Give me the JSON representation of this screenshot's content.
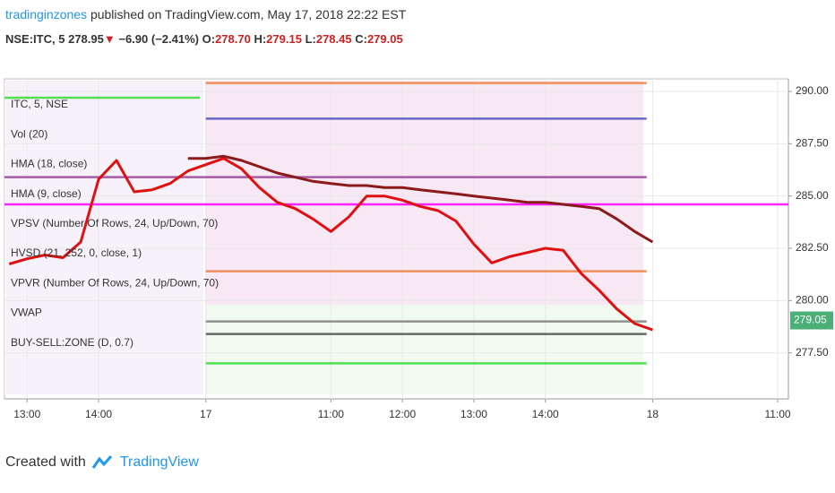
{
  "header": {
    "author": "tradinginzones",
    "published": "published on TradingView.com, May 17, 2018 22:22 EST",
    "symbol": "NSE:ITC, 5",
    "last": "278.95",
    "arrow": "▼",
    "change": "−6.90 (−2.41%)",
    "open_label": "O:",
    "open": "278.70",
    "high_label": "H:",
    "high": "279.15",
    "low_label": "L:",
    "low": "278.45",
    "close_label": "C:",
    "close": "279.05"
  },
  "chart_data": {
    "type": "line",
    "indicators": [
      "ITC, 5, NSE",
      "Vol (20)",
      "HMA (18, close)",
      "HMA (9, close)",
      "VPSV (Number Of Rows, 24, Up/Down, 70)",
      "HVSD (21, 252, 0, close, 1)",
      "VPVR (Number Of Rows, 24, Up/Down, 70)",
      "VWAP",
      "BUY-SELL:ZONE (D, 0.7)"
    ],
    "x": [
      -3,
      0,
      3,
      6,
      9,
      12,
      15,
      18,
      21,
      24,
      27,
      30,
      33,
      36,
      39,
      42,
      45,
      48,
      51,
      54,
      57,
      60,
      63,
      66,
      69,
      72,
      75,
      78,
      81,
      84,
      87,
      90,
      93,
      96,
      99,
      102,
      105
    ],
    "series": [
      {
        "color": "#e01010",
        "values": [
          281.75,
          282.0,
          282.18,
          282.05,
          282.8,
          285.8,
          286.7,
          285.2,
          285.3,
          285.6,
          286.2,
          286.5,
          286.8,
          286.3,
          285.4,
          284.7,
          284.4,
          283.9,
          283.3,
          284.0,
          285.0,
          285.0,
          284.8,
          284.5,
          284.3,
          283.8,
          282.7,
          281.8,
          282.1,
          282.3,
          282.5,
          282.4,
          281.3,
          280.5,
          279.6,
          278.9,
          278.6
        ]
      },
      {
        "color": "#8b1a1a",
        "values": [
          null,
          null,
          null,
          null,
          null,
          null,
          null,
          null,
          null,
          null,
          286.8,
          286.8,
          286.9,
          286.7,
          286.4,
          286.1,
          285.9,
          285.7,
          285.6,
          285.5,
          285.5,
          285.4,
          285.4,
          285.3,
          285.2,
          285.1,
          285.0,
          284.9,
          284.8,
          284.7,
          284.7,
          284.6,
          284.5,
          284.4,
          283.9,
          283.3,
          282.8
        ]
      }
    ],
    "levels": [
      {
        "value": 289.7,
        "color": "#33dd33",
        "from": -3.8,
        "to": 29
      },
      {
        "value": 290.4,
        "color": "#f08040",
        "from": 30,
        "to": 104
      },
      {
        "value": 288.7,
        "color": "#5050c0",
        "from": 30,
        "to": 104
      },
      {
        "value": 285.9,
        "color": "#9b3f9b",
        "from": -3.8,
        "to": 104
      },
      {
        "value": 284.6,
        "color": "#ff00ff",
        "from": -3.8,
        "to": 127.8
      },
      {
        "value": 281.4,
        "color": "#f08040",
        "from": 30,
        "to": 104
      },
      {
        "value": 279.0,
        "color": "#808080",
        "from": 30,
        "to": 104
      },
      {
        "value": 278.4,
        "color": "#505050",
        "from": 30,
        "to": 104
      },
      {
        "value": 277.0,
        "color": "#33dd33",
        "from": 30,
        "to": 104
      }
    ],
    "last_price": 279.05,
    "last_color": "#4caf78",
    "xlim": [
      -3.8,
      127.8
    ],
    "xticks": [
      {
        "value": 0,
        "label": "13:00"
      },
      {
        "value": 12,
        "label": "14:00"
      },
      {
        "value": 30,
        "label": "17"
      },
      {
        "value": 51,
        "label": "11:00"
      },
      {
        "value": 63,
        "label": "12:00"
      },
      {
        "value": 75,
        "label": "13:00"
      },
      {
        "value": 87,
        "label": "14:00"
      },
      {
        "value": 105,
        "label": "18"
      },
      {
        "value": 126,
        "label": "11:00"
      }
    ],
    "ylim": [
      275.3,
      290.6
    ],
    "yticks": [
      {
        "value": 277.5,
        "label": "277.50"
      },
      {
        "value": 280,
        "label": "280.00"
      },
      {
        "value": 282.5,
        "label": "282.50"
      },
      {
        "value": 285,
        "label": "285.00"
      },
      {
        "value": 287.5,
        "label": "287.50"
      },
      {
        "value": 290,
        "label": "290.00"
      }
    ],
    "grid": true
  },
  "footer": {
    "created": "Created with",
    "brand": "TradingView"
  }
}
